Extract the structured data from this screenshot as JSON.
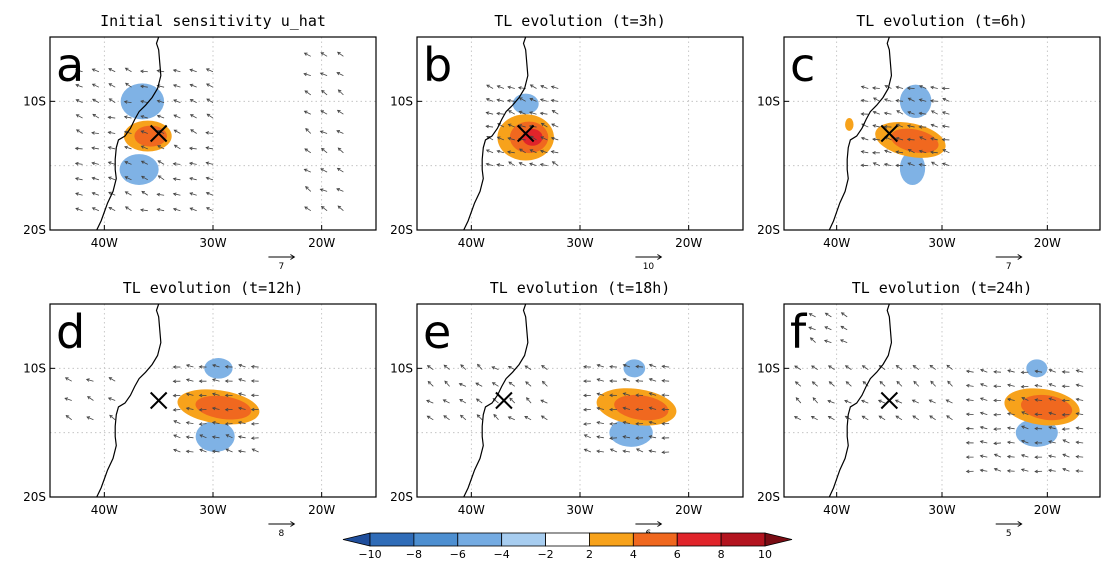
{
  "figure": {
    "colorbar": {
      "levels": [
        -10,
        -8,
        -6,
        -4,
        -2,
        2,
        4,
        6,
        8,
        10
      ],
      "labels": [
        "−10",
        "−8",
        "−6",
        "−4",
        "−2",
        "2",
        "4",
        "6",
        "8",
        "10"
      ],
      "colors": [
        "#1f4e9c",
        "#2f6cb8",
        "#4d8fd1",
        "#74abe2",
        "#a7cdf0",
        "#ffffff",
        "#f7a21b",
        "#f0681f",
        "#e0242a",
        "#b3141f",
        "#7a0c14"
      ]
    },
    "feature_colors": {
      "coast": "#000000",
      "grid": "#bbbbbb",
      "vector": "#444444",
      "blue": "#7fb2e5",
      "orange": "#f7a21b",
      "red_core": "#e0242a"
    }
  },
  "chart_data": [
    {
      "type": "vector-field-contour",
      "label": "a",
      "title": "Initial sensitivity u_hat",
      "xlim": [
        -45,
        -15
      ],
      "ylim": [
        -20,
        -5
      ],
      "xticks": [
        -40,
        -30,
        -20
      ],
      "xticklabels": [
        "40W",
        "30W",
        "20W"
      ],
      "yticks": [
        -10,
        -20
      ],
      "yticklabels": [
        "10S",
        "20S"
      ],
      "marker": {
        "lon": -35,
        "lat": -12.5,
        "symbol": "×"
      },
      "ref_vector_label": "7",
      "contours": [
        {
          "sign": "negative",
          "level": -4,
          "lon": -36.5,
          "lat": -10.0,
          "rlon": 2.0,
          "rlat": 1.4,
          "angle": 0
        },
        {
          "sign": "negative",
          "level": -4,
          "lon": -36.8,
          "lat": -15.3,
          "rlon": 1.8,
          "rlat": 1.2,
          "angle": 0
        },
        {
          "sign": "positive",
          "level": 4,
          "lon": -36.0,
          "lat": -12.7,
          "rlon": 2.2,
          "rlat": 1.2,
          "angle": 0,
          "max_level": 6
        }
      ],
      "vector_regions": [
        {
          "lon0": -42,
          "lon1": -30,
          "lat0": -18.5,
          "lat1": -7.5,
          "dx": 1.5,
          "dy": 1.2,
          "dir": -170
        },
        {
          "lon0": -21,
          "lon1": -17,
          "lat0": -18.5,
          "lat1": -6.5,
          "dx": 1.5,
          "dy": 1.5,
          "dir": 180
        }
      ]
    },
    {
      "type": "vector-field-contour",
      "label": "b",
      "title": "TL evolution (t=3h)",
      "xlim": [
        -45,
        -15
      ],
      "ylim": [
        -20,
        -5
      ],
      "xticks": [
        -40,
        -30,
        -20
      ],
      "xticklabels": [
        "40W",
        "30W",
        "20W"
      ],
      "yticks": [
        -10,
        -20
      ],
      "yticklabels": [
        "10S",
        "20S"
      ],
      "marker": {
        "lon": -35,
        "lat": -12.5,
        "symbol": "×"
      },
      "ref_vector_label": "10",
      "contours": [
        {
          "sign": "negative",
          "level": -4,
          "lon": -35.0,
          "lat": -10.2,
          "rlon": 1.2,
          "rlat": 0.8,
          "angle": 0
        },
        {
          "sign": "positive",
          "level": 4,
          "lon": -35.0,
          "lat": -12.8,
          "rlon": 2.6,
          "rlat": 1.8,
          "angle": 0,
          "max_level": 8
        }
      ],
      "vector_regions": [
        {
          "lon0": -38,
          "lon1": -32,
          "lat0": -15,
          "lat1": -9,
          "dx": 1.0,
          "dy": 1.0,
          "dir": -170
        }
      ]
    },
    {
      "type": "vector-field-contour",
      "label": "c",
      "title": "TL evolution (t=6h)",
      "xlim": [
        -45,
        -15
      ],
      "ylim": [
        -20,
        -5
      ],
      "xticks": [
        -40,
        -30,
        -20
      ],
      "xticklabels": [
        "40W",
        "30W",
        "20W"
      ],
      "yticks": [
        -10,
        -20
      ],
      "yticklabels": [
        "10S",
        "20S"
      ],
      "marker": {
        "lon": -35,
        "lat": -12.5,
        "symbol": "×"
      },
      "ref_vector_label": "7",
      "contours": [
        {
          "sign": "negative",
          "level": -4,
          "lon": -32.5,
          "lat": -10.0,
          "rlon": 1.5,
          "rlat": 1.3,
          "angle": 0
        },
        {
          "sign": "negative",
          "level": -4,
          "lon": -32.8,
          "lat": -15.2,
          "rlon": 1.2,
          "rlat": 1.3,
          "angle": 0
        },
        {
          "sign": "positive",
          "level": 4,
          "lon": -33.0,
          "lat": -13.0,
          "rlon": 3.4,
          "rlat": 1.3,
          "angle": 12,
          "max_level": 6
        },
        {
          "sign": "positive",
          "level": 4,
          "lon": -38.8,
          "lat": -11.8,
          "rlon": 0.4,
          "rlat": 0.5,
          "angle": 0
        }
      ],
      "vector_regions": [
        {
          "lon0": -37,
          "lon1": -29,
          "lat0": -15,
          "lat1": -9,
          "dx": 1.1,
          "dy": 1.0,
          "dir": -165
        }
      ]
    },
    {
      "type": "vector-field-contour",
      "label": "d",
      "title": "TL evolution (t=12h)",
      "xlim": [
        -45,
        -15
      ],
      "ylim": [
        -20,
        -5
      ],
      "xticks": [
        -40,
        -30,
        -20
      ],
      "xticklabels": [
        "40W",
        "30W",
        "20W"
      ],
      "yticks": [
        -10,
        -20
      ],
      "yticklabels": [
        "10S",
        "20S"
      ],
      "marker": {
        "lon": -35,
        "lat": -12.5,
        "symbol": "×"
      },
      "ref_vector_label": "8",
      "contours": [
        {
          "sign": "negative",
          "level": -4,
          "lon": -29.5,
          "lat": -10.0,
          "rlon": 1.3,
          "rlat": 0.8,
          "angle": 0
        },
        {
          "sign": "negative",
          "level": -4,
          "lon": -29.8,
          "lat": -15.3,
          "rlon": 1.8,
          "rlat": 1.2,
          "angle": 0
        },
        {
          "sign": "positive",
          "level": 4,
          "lon": -29.5,
          "lat": -13.0,
          "rlon": 3.8,
          "rlat": 1.3,
          "angle": 8,
          "max_level": 6
        }
      ],
      "vector_regions": [
        {
          "lon0": -33,
          "lon1": -25,
          "lat0": -16.5,
          "lat1": -9.5,
          "dx": 1.2,
          "dy": 1.1,
          "dir": -160
        },
        {
          "lon0": -45,
          "lon1": -39,
          "lat0": -14,
          "lat1": -10,
          "dx": 2.0,
          "dy": 1.5,
          "dir": 180
        }
      ]
    },
    {
      "type": "vector-field-contour",
      "label": "e",
      "title": "TL evolution (t=18h)",
      "xlim": [
        -45,
        -15
      ],
      "ylim": [
        -20,
        -5
      ],
      "xticks": [
        -40,
        -30,
        -20
      ],
      "xticklabels": [
        "40W",
        "30W",
        "20W"
      ],
      "yticks": [
        -10,
        -20
      ],
      "yticklabels": [
        "10S",
        "20S"
      ],
      "marker": {
        "lon": -37,
        "lat": -12.5,
        "symbol": "×"
      },
      "ref_vector_label": "6",
      "contours": [
        {
          "sign": "negative",
          "level": -4,
          "lon": -25.0,
          "lat": -10.0,
          "rlon": 1.0,
          "rlat": 0.7,
          "angle": 0
        },
        {
          "sign": "negative",
          "level": -4,
          "lon": -25.3,
          "lat": -15.0,
          "rlon": 2.0,
          "rlat": 1.1,
          "angle": 0
        },
        {
          "sign": "positive",
          "level": 4,
          "lon": -24.8,
          "lat": -13.0,
          "rlon": 3.7,
          "rlat": 1.4,
          "angle": 8,
          "max_level": 6
        }
      ],
      "vector_regions": [
        {
          "lon0": -29,
          "lon1": -21,
          "lat0": -16.5,
          "lat1": -9.5,
          "dx": 1.2,
          "dy": 1.1,
          "dir": -160
        },
        {
          "lon0": -45,
          "lon1": -32,
          "lat0": -14,
          "lat1": -9.5,
          "dx": 1.5,
          "dy": 1.3,
          "dir": 175
        }
      ]
    },
    {
      "type": "vector-field-contour",
      "label": "f",
      "title": "TL evolution (t=24h)",
      "xlim": [
        -45,
        -15
      ],
      "ylim": [
        -20,
        -5
      ],
      "xticks": [
        -40,
        -30,
        -20
      ],
      "xticklabels": [
        "40W",
        "30W",
        "20W"
      ],
      "yticks": [
        -10,
        -20
      ],
      "yticklabels": [
        "10S",
        "20S"
      ],
      "marker": {
        "lon": -35,
        "lat": -12.5,
        "symbol": "×"
      },
      "ref_vector_label": "5",
      "contours": [
        {
          "sign": "negative",
          "level": -4,
          "lon": -21.0,
          "lat": -10.0,
          "rlon": 1.0,
          "rlat": 0.7,
          "angle": 0
        },
        {
          "sign": "negative",
          "level": -4,
          "lon": -21.0,
          "lat": -15.0,
          "rlon": 2.0,
          "rlat": 1.1,
          "angle": 0
        },
        {
          "sign": "positive",
          "level": 4,
          "lon": -20.5,
          "lat": -13.0,
          "rlon": 3.6,
          "rlat": 1.4,
          "angle": 8,
          "max_level": 6
        }
      ],
      "vector_regions": [
        {
          "lon0": -27,
          "lon1": -15.5,
          "lat0": -18,
          "lat1": -9.5,
          "dx": 1.3,
          "dy": 1.1,
          "dir": -160
        },
        {
          "lon0": -45,
          "lon1": -28,
          "lat0": -14,
          "lat1": -9,
          "dx": 1.6,
          "dy": 1.3,
          "dir": 175
        },
        {
          "lon0": -42,
          "lon1": -38,
          "lat0": -8,
          "lat1": -6,
          "dx": 1.5,
          "dy": 1.0,
          "dir": 180
        }
      ]
    }
  ]
}
